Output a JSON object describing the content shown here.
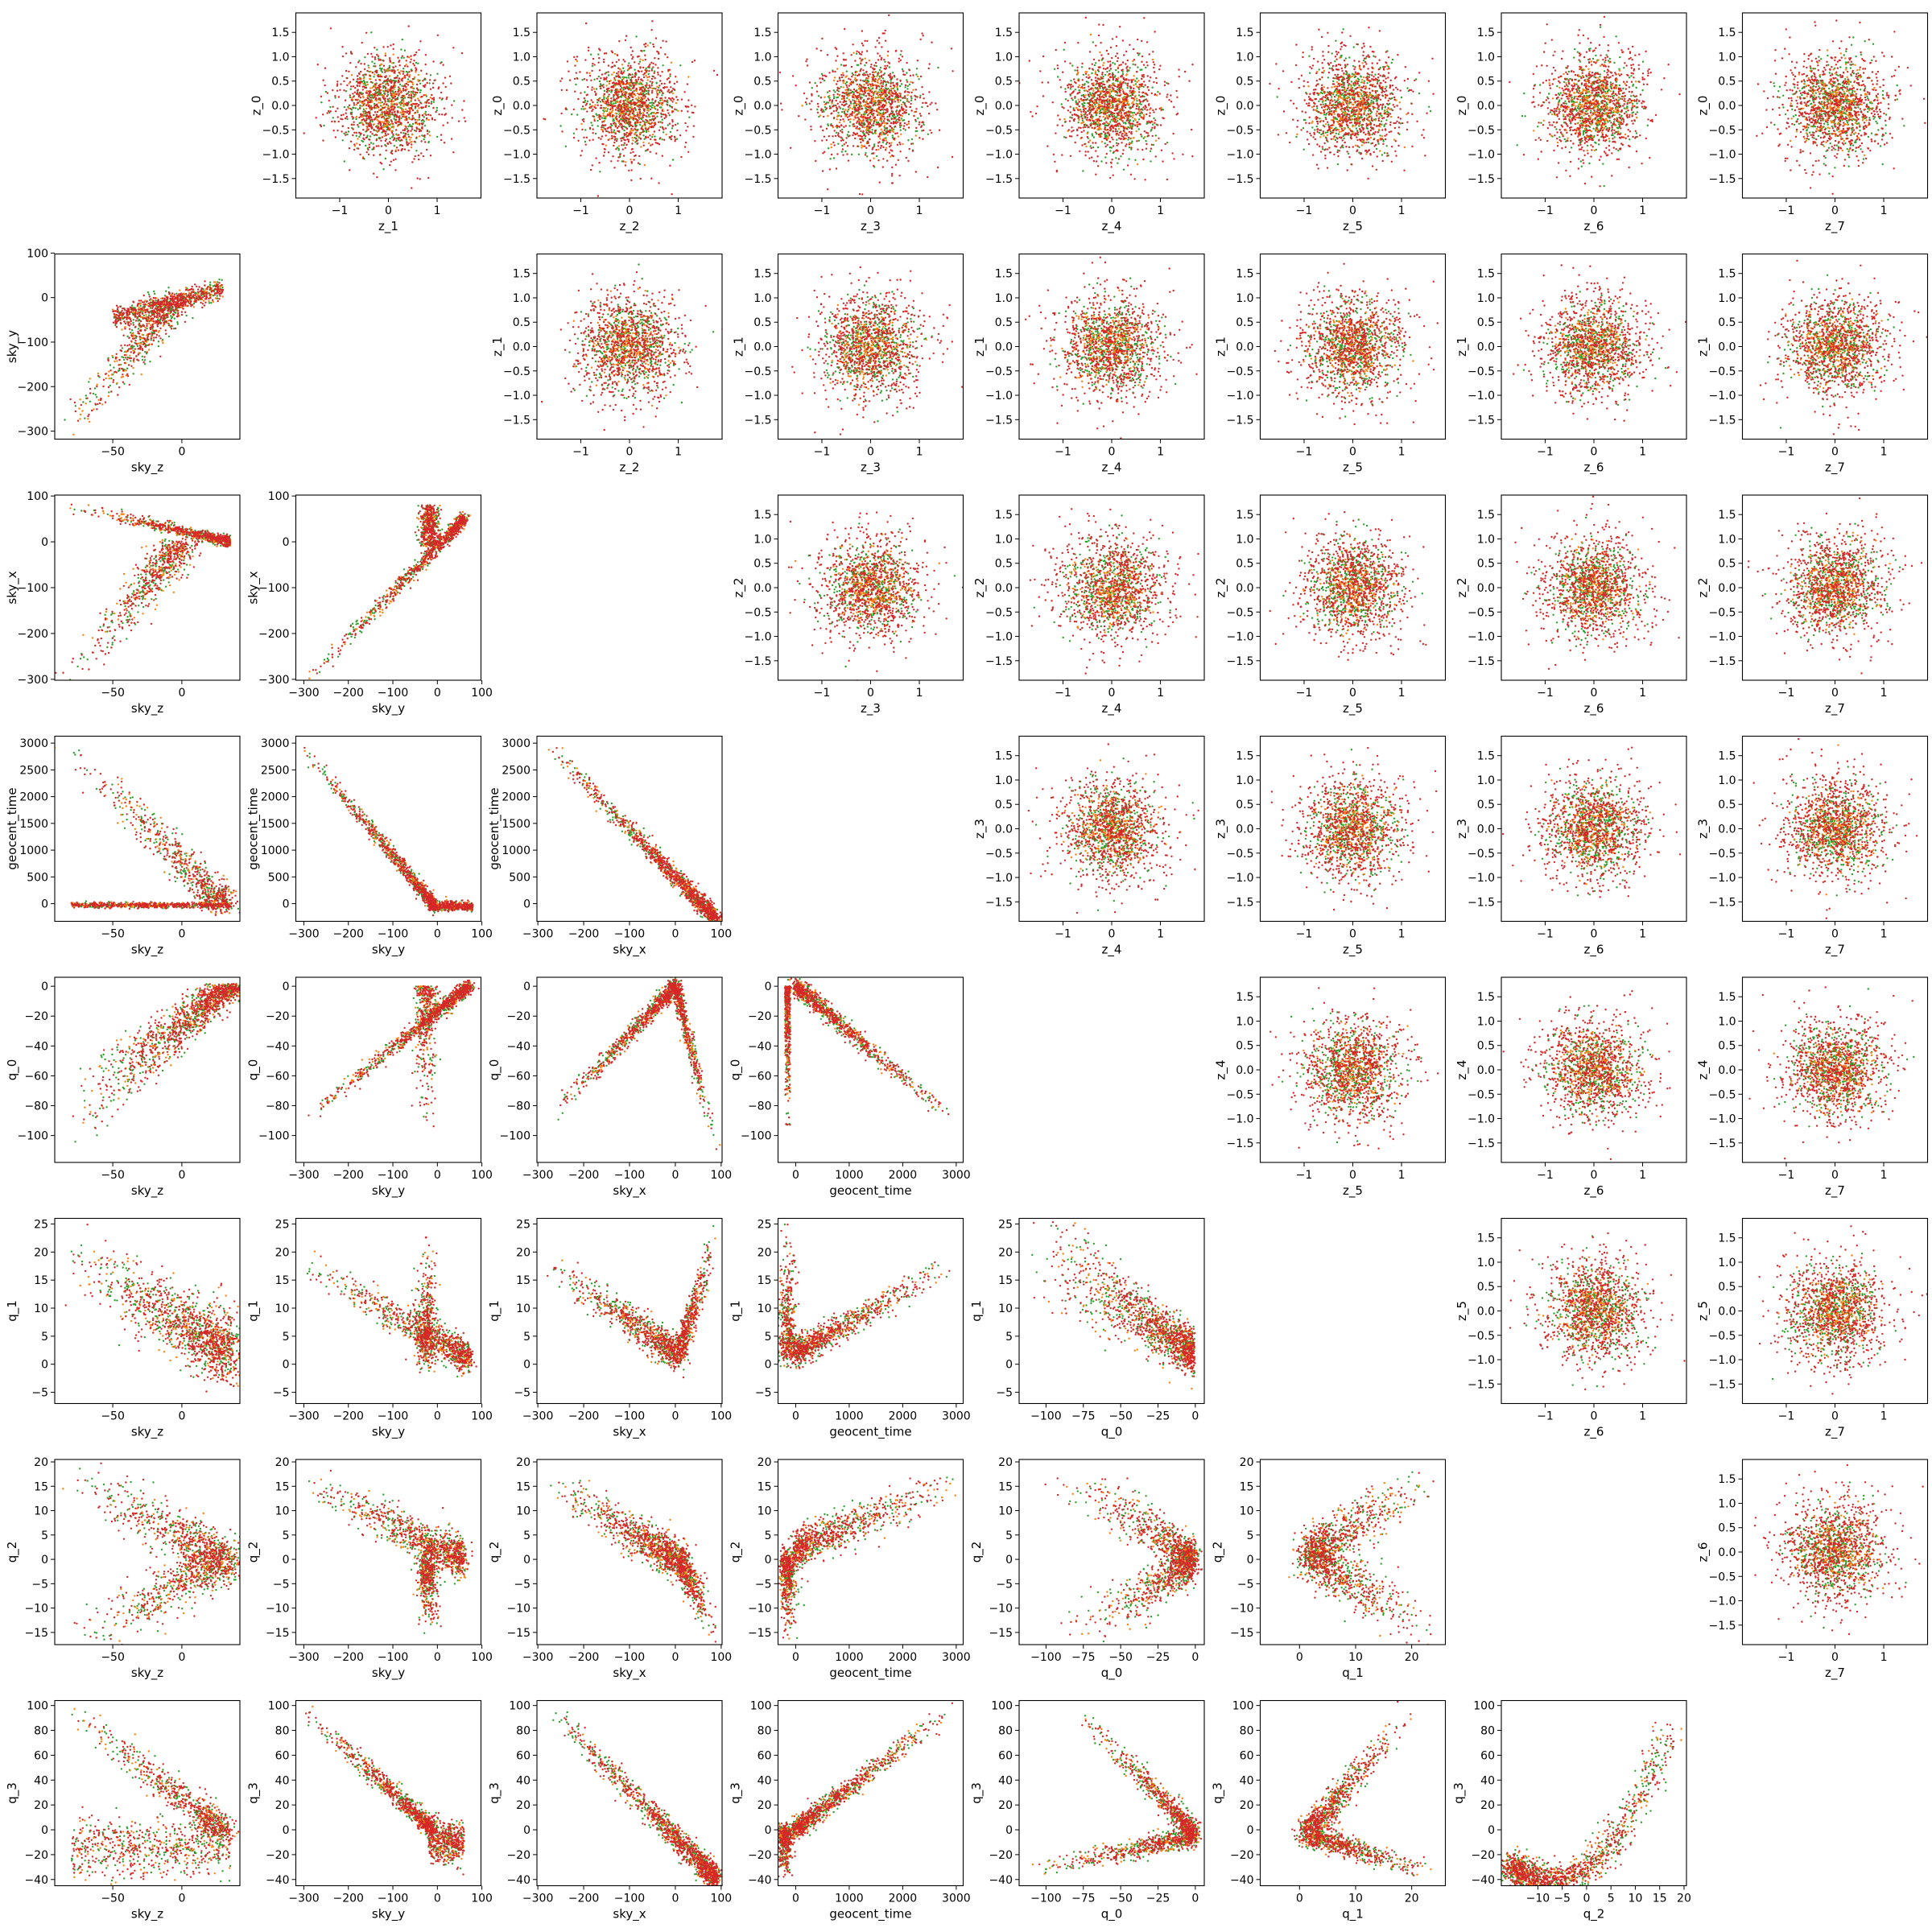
{
  "chart_data": {
    "type": "scatter",
    "layout": "corner-grid",
    "grid_size": 8,
    "point_colors": [
      "#2ca02c",
      "#ff7f0e",
      "#d62728"
    ],
    "variables": {
      "z_0": {
        "label": "z_0",
        "lim": [
          -1.9,
          1.9
        ],
        "ticks": [
          -1.5,
          -1.0,
          -0.5,
          0.0,
          0.5,
          1.0,
          1.5
        ],
        "tick_labels": [
          "−1.5",
          "−1.0",
          "−0.5",
          "0.0",
          "0.5",
          "1.0",
          "1.5"
        ]
      },
      "z_1": {
        "label": "z_1",
        "lim": [
          -1.9,
          1.9
        ],
        "ticks": [
          -1.5,
          -1.0,
          -0.5,
          0.0,
          0.5,
          1.0,
          1.5
        ],
        "tick_labels": [
          "−1.5",
          "−1.0",
          "−0.5",
          "0.0",
          "0.5",
          "1.0",
          "1.5"
        ],
        "x_ticks": [
          -1,
          0,
          1
        ],
        "x_tick_labels": [
          "−1",
          "0",
          "1"
        ]
      },
      "z_2": {
        "label": "z_2",
        "lim": [
          -1.9,
          1.9
        ],
        "ticks": [
          -1.5,
          -1.0,
          -0.5,
          0.0,
          0.5,
          1.0,
          1.5
        ],
        "tick_labels": [
          "−1.5",
          "−1.0",
          "−0.5",
          "0.0",
          "0.5",
          "1.0",
          "1.5"
        ],
        "x_ticks": [
          -1,
          0,
          1
        ],
        "x_tick_labels": [
          "−1",
          "0",
          "1"
        ]
      },
      "z_3": {
        "label": "z_3",
        "lim": [
          -1.9,
          1.9
        ],
        "ticks": [
          -1.5,
          -1.0,
          -0.5,
          0.0,
          0.5,
          1.0,
          1.5
        ],
        "tick_labels": [
          "−1.5",
          "−1.0",
          "−0.5",
          "0.0",
          "0.5",
          "1.0",
          "1.5"
        ],
        "x_ticks": [
          -1,
          0,
          1
        ],
        "x_tick_labels": [
          "−1",
          "0",
          "1"
        ]
      },
      "z_4": {
        "label": "z_4",
        "lim": [
          -1.9,
          1.9
        ],
        "ticks": [
          -1.5,
          -1.0,
          -0.5,
          0.0,
          0.5,
          1.0,
          1.5
        ],
        "tick_labels": [
          "−1.5",
          "−1.0",
          "−0.5",
          "0.0",
          "0.5",
          "1.0",
          "1.5"
        ],
        "x_ticks": [
          -1,
          0,
          1
        ],
        "x_tick_labels": [
          "−1",
          "0",
          "1"
        ]
      },
      "z_5": {
        "label": "z_5",
        "lim": [
          -1.9,
          1.9
        ],
        "ticks": [
          -1.5,
          -1.0,
          -0.5,
          0.0,
          0.5,
          1.0,
          1.5
        ],
        "tick_labels": [
          "−1.5",
          "−1.0",
          "−0.5",
          "0.0",
          "0.5",
          "1.0",
          "1.5"
        ],
        "x_ticks": [
          -1,
          0,
          1
        ],
        "x_tick_labels": [
          "−1",
          "0",
          "1"
        ]
      },
      "z_6": {
        "label": "z_6",
        "lim": [
          -1.9,
          1.9
        ],
        "ticks": [
          -1.5,
          -1.0,
          -0.5,
          0.0,
          0.5,
          1.0,
          1.5
        ],
        "tick_labels": [
          "−1.5",
          "−1.0",
          "−0.5",
          "0.0",
          "0.5",
          "1.0",
          "1.5"
        ],
        "x_ticks": [
          -1,
          0,
          1
        ],
        "x_tick_labels": [
          "−1",
          "0",
          "1"
        ]
      },
      "z_7": {
        "label": "z_7",
        "lim": [
          -1.9,
          1.9
        ],
        "x_ticks": [
          -1,
          0,
          1
        ],
        "x_tick_labels": [
          "−1",
          "0",
          "1"
        ]
      },
      "sky_z": {
        "label": "sky_z",
        "lim": [
          -92,
          42
        ],
        "ticks": [
          -50,
          0
        ],
        "tick_labels": [
          "−50",
          "0"
        ]
      },
      "sky_y": {
        "label": "sky_y",
        "lim": [
          -318,
          98
        ],
        "ticks": [
          -300,
          -200,
          -100,
          0,
          100
        ],
        "tick_labels": [
          "−300",
          "−200",
          "−100",
          "0",
          "100"
        ]
      },
      "sky_x": {
        "label": "sky_x",
        "lim": [
          -302,
          102
        ],
        "ticks": [
          -300,
          -200,
          -100,
          0,
          100
        ],
        "tick_labels": [
          "−300",
          "−200",
          "−100",
          "0",
          "100"
        ]
      },
      "geocent_time": {
        "label": "geocent_time",
        "lim": [
          -330,
          3130
        ],
        "ticks": [
          0,
          500,
          1000,
          1500,
          2000,
          2500,
          3000
        ],
        "tick_labels": [
          "0",
          "500",
          "1000",
          "1500",
          "2000",
          "2500",
          "3000"
        ],
        "x_ticks": [
          0,
          1000,
          2000,
          3000
        ],
        "x_tick_labels": [
          "0",
          "1000",
          "2000",
          "3000"
        ]
      },
      "q_0": {
        "label": "q_0",
        "lim": [
          -118,
          6
        ],
        "ticks": [
          -100,
          -80,
          -60,
          -40,
          -20,
          0
        ],
        "tick_labels": [
          "−100",
          "−80",
          "−60",
          "−40",
          "−20",
          "0"
        ],
        "x_ticks": [
          -100,
          -75,
          -50,
          -25,
          0
        ],
        "x_tick_labels": [
          "−100",
          "−75",
          "−50",
          "−25",
          "0"
        ]
      },
      "q_1": {
        "label": "q_1",
        "lim": [
          -7,
          26
        ],
        "ticks": [
          -5,
          0,
          5,
          10,
          15,
          20,
          25
        ],
        "tick_labels": [
          "−5",
          "0",
          "5",
          "10",
          "15",
          "20",
          "25"
        ],
        "x_ticks": [
          0,
          10,
          20
        ],
        "x_tick_labels": [
          "0",
          "10",
          "20"
        ]
      },
      "q_2": {
        "label": "q_2",
        "lim": [
          -17.5,
          20.5
        ],
        "ticks": [
          -15,
          -10,
          -5,
          0,
          5,
          10,
          15,
          20
        ],
        "tick_labels": [
          "−15",
          "−10",
          "−5",
          "0",
          "5",
          "10",
          "15",
          "20"
        ],
        "x_ticks": [
          -10,
          -5,
          0,
          5,
          10,
          15,
          20
        ],
        "x_tick_labels": [
          "−10",
          "−5",
          "0",
          "5",
          "10",
          "15",
          "20"
        ]
      },
      "q_3": {
        "label": "q_3",
        "lim": [
          -45,
          104
        ],
        "ticks": [
          -40,
          -20,
          0,
          20,
          40,
          60,
          80,
          100
        ],
        "tick_labels": [
          "−40",
          "−20",
          "0",
          "20",
          "40",
          "60",
          "80",
          "100"
        ]
      }
    },
    "upper_panels": [
      {
        "x": "z_1",
        "y": "z_0"
      },
      {
        "x": "z_2",
        "y": "z_0"
      },
      {
        "x": "z_3",
        "y": "z_0"
      },
      {
        "x": "z_4",
        "y": "z_0"
      },
      {
        "x": "z_5",
        "y": "z_0"
      },
      {
        "x": "z_6",
        "y": "z_0"
      },
      {
        "x": "z_7",
        "y": "z_0"
      },
      {
        "x": "z_2",
        "y": "z_1"
      },
      {
        "x": "z_3",
        "y": "z_1"
      },
      {
        "x": "z_4",
        "y": "z_1"
      },
      {
        "x": "z_5",
        "y": "z_1"
      },
      {
        "x": "z_6",
        "y": "z_1"
      },
      {
        "x": "z_7",
        "y": "z_1"
      },
      {
        "x": "z_3",
        "y": "z_2"
      },
      {
        "x": "z_4",
        "y": "z_2"
      },
      {
        "x": "z_5",
        "y": "z_2"
      },
      {
        "x": "z_6",
        "y": "z_2"
      },
      {
        "x": "z_7",
        "y": "z_2"
      },
      {
        "x": "z_4",
        "y": "z_3"
      },
      {
        "x": "z_5",
        "y": "z_3"
      },
      {
        "x": "z_6",
        "y": "z_3"
      },
      {
        "x": "z_7",
        "y": "z_3"
      },
      {
        "x": "z_5",
        "y": "z_4"
      },
      {
        "x": "z_6",
        "y": "z_4"
      },
      {
        "x": "z_7",
        "y": "z_4"
      },
      {
        "x": "z_6",
        "y": "z_5"
      },
      {
        "x": "z_7",
        "y": "z_5"
      },
      {
        "x": "z_7",
        "y": "z_6"
      }
    ],
    "lower_panels": [
      {
        "x": "sky_z",
        "y": "sky_y"
      },
      {
        "x": "sky_z",
        "y": "sky_x"
      },
      {
        "x": "sky_y",
        "y": "sky_x"
      },
      {
        "x": "sky_z",
        "y": "geocent_time"
      },
      {
        "x": "sky_y",
        "y": "geocent_time"
      },
      {
        "x": "sky_x",
        "y": "geocent_time"
      },
      {
        "x": "sky_z",
        "y": "q_0"
      },
      {
        "x": "sky_y",
        "y": "q_0"
      },
      {
        "x": "sky_x",
        "y": "q_0"
      },
      {
        "x": "geocent_time",
        "y": "q_0"
      },
      {
        "x": "sky_z",
        "y": "q_1"
      },
      {
        "x": "sky_y",
        "y": "q_1"
      },
      {
        "x": "sky_x",
        "y": "q_1"
      },
      {
        "x": "geocent_time",
        "y": "q_1"
      },
      {
        "x": "q_0",
        "y": "q_1"
      },
      {
        "x": "sky_z",
        "y": "q_2"
      },
      {
        "x": "sky_y",
        "y": "q_2"
      },
      {
        "x": "sky_x",
        "y": "q_2"
      },
      {
        "x": "geocent_time",
        "y": "q_2"
      },
      {
        "x": "q_0",
        "y": "q_2"
      },
      {
        "x": "q_1",
        "y": "q_2"
      },
      {
        "x": "sky_z",
        "y": "q_3"
      },
      {
        "x": "sky_y",
        "y": "q_3"
      },
      {
        "x": "sky_x",
        "y": "q_3"
      },
      {
        "x": "geocent_time",
        "y": "q_3"
      },
      {
        "x": "q_0",
        "y": "q_3"
      },
      {
        "x": "q_1",
        "y": "q_3"
      },
      {
        "x": "q_2",
        "y": "q_3"
      }
    ]
  }
}
